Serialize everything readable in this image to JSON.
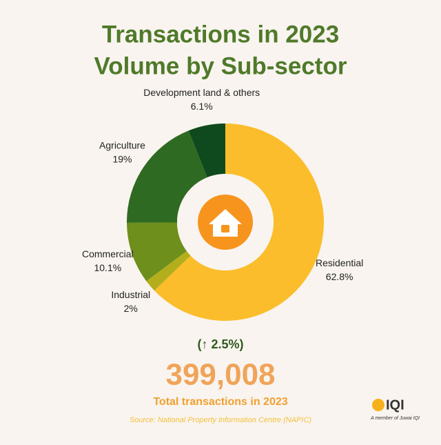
{
  "chart_data": {
    "type": "donut",
    "title": "Transactions in 2023",
    "subtitle": "Volume by Sub-sector",
    "categories": [
      "Residential",
      "Industrial",
      "Commercial",
      "Agriculture",
      "Development land & others"
    ],
    "values": [
      62.8,
      2,
      10.1,
      19,
      6.1
    ],
    "value_labels": [
      "62.8%",
      "2%",
      "10.1%",
      "19%",
      "6.1%"
    ],
    "colors": [
      "#fbbd2b",
      "#b3ae1c",
      "#6e8f1b",
      "#2f6a22",
      "#0e4a1d"
    ],
    "change": "(↑ 2.5%)",
    "total": "399,008",
    "total_label": "Total transactions in 2023",
    "source": "Source: National Property Information Centre (NAPIC)",
    "logo": "IQI",
    "logo_tagline": "A member of Juwai IQI"
  }
}
